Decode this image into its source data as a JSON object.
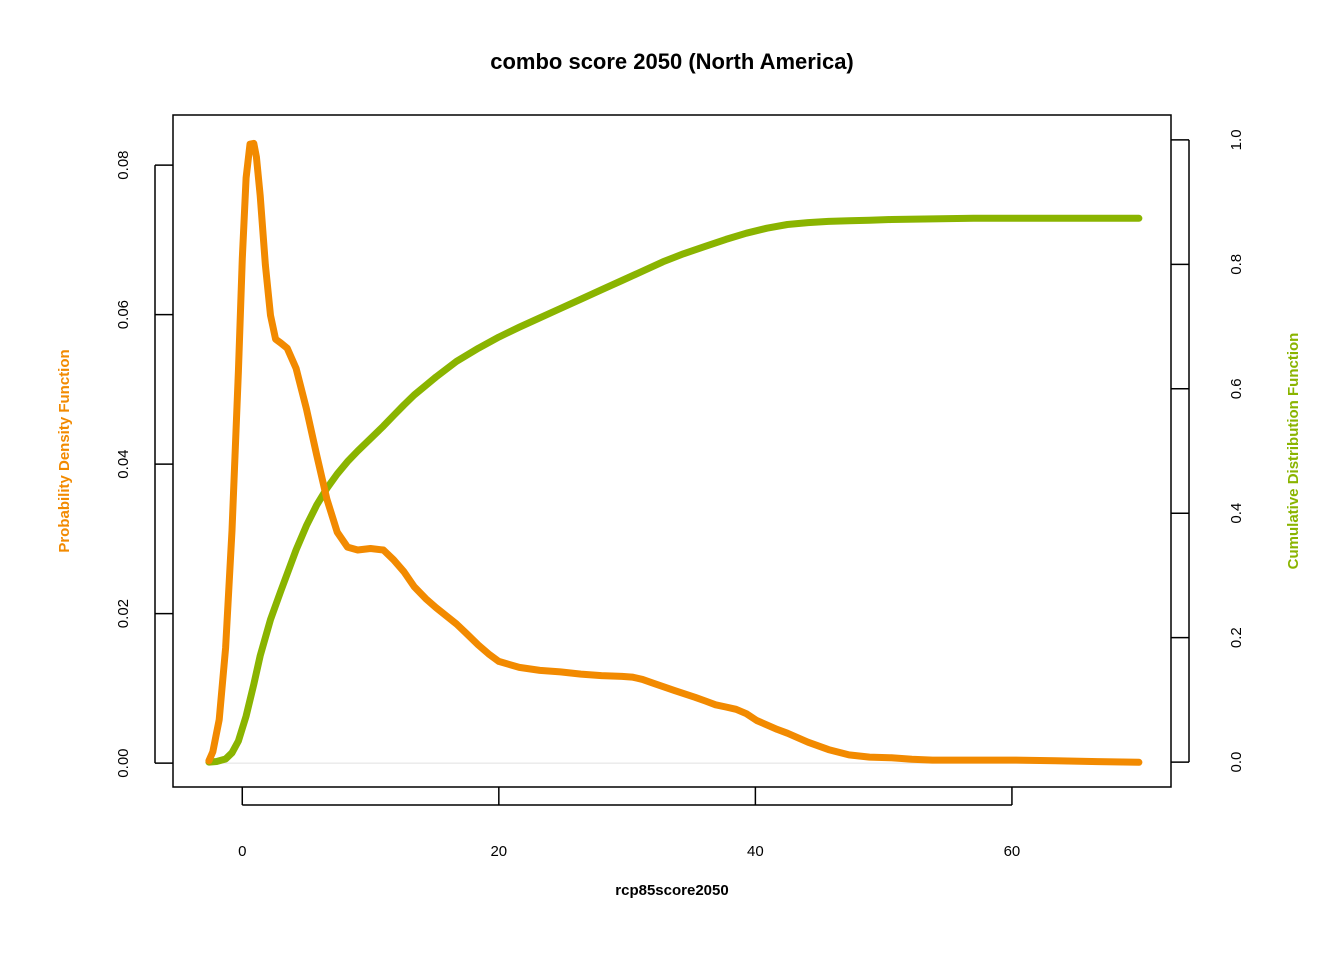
{
  "chart_data": {
    "type": "line",
    "title": "combo score 2050 (North America)",
    "xlabel": "rcp85score2050",
    "ylabel_left": "Probability Density Function",
    "ylabel_right": "Cumulative Distribution Function",
    "xlim": [
      -5.4,
      72.4
    ],
    "ylim_left": [
      -0.0032,
      0.0867
    ],
    "ylim_right": [
      -0.04,
      1.04
    ],
    "x_ticks": [
      0,
      20,
      40,
      60
    ],
    "x_tick_labels": [
      "0",
      "20",
      "40",
      "60"
    ],
    "y_left_ticks": [
      0.0,
      0.02,
      0.04,
      0.06,
      0.08
    ],
    "y_left_tick_labels": [
      "0.00",
      "0.02",
      "0.04",
      "0.06",
      "0.08"
    ],
    "y_right_ticks": [
      0.0,
      0.2,
      0.4,
      0.6,
      0.8,
      1.0
    ],
    "y_right_tick_labels": [
      "0.0",
      "0.2",
      "0.4",
      "0.6",
      "0.8",
      "1.0"
    ],
    "grid": false,
    "colors": {
      "pdf": "#F28A00",
      "cdf": "#8AB400",
      "axis": "#000000",
      "zero_line": "#E0E0E0"
    },
    "series": [
      {
        "name": "Probability Density Function",
        "axis": "left",
        "color": "#F28A00",
        "x": [
          -2.6,
          -2.3,
          -1.8,
          -1.3,
          -0.8,
          -0.3,
          0.0,
          0.3,
          0.6,
          0.9,
          1.1,
          1.4,
          1.8,
          2.2,
          2.6,
          3.0,
          3.5,
          4.2,
          5.0,
          5.8,
          6.6,
          7.4,
          8.2,
          9.0,
          10.0,
          11.0,
          11.8,
          12.6,
          13.4,
          14.3,
          15.1,
          16.7,
          17.5,
          18.4,
          19.2,
          20.0,
          21.6,
          23.2,
          24.8,
          26.4,
          28.0,
          29.6,
          30.4,
          31.2,
          32.0,
          33.7,
          35.3,
          36.1,
          36.9,
          37.7,
          38.5,
          39.3,
          40.1,
          41.7,
          42.5,
          44.1,
          45.7,
          47.3,
          48.9,
          50.6,
          52.2,
          53.8,
          57.0,
          60.2,
          63.4,
          66.7,
          69.9
        ],
        "y": [
          0.0003,
          0.0015,
          0.0058,
          0.0154,
          0.0311,
          0.0524,
          0.0675,
          0.0783,
          0.0828,
          0.0829,
          0.0811,
          0.0759,
          0.0666,
          0.0599,
          0.0567,
          0.0562,
          0.0555,
          0.0528,
          0.0474,
          0.0412,
          0.0353,
          0.0309,
          0.0289,
          0.0285,
          0.0287,
          0.0285,
          0.0272,
          0.0256,
          0.0236,
          0.022,
          0.0208,
          0.0186,
          0.0173,
          0.0158,
          0.0146,
          0.0136,
          0.0128,
          0.0124,
          0.0122,
          0.0119,
          0.0117,
          0.0116,
          0.0115,
          0.0112,
          0.0107,
          0.0097,
          0.0088,
          0.0083,
          0.0078,
          0.0075,
          0.0072,
          0.0066,
          0.0057,
          0.0045,
          0.004,
          0.0028,
          0.0018,
          0.0011,
          0.0008,
          0.0007,
          0.0005,
          0.0004,
          0.0004,
          0.0004,
          0.0003,
          0.0002,
          0.0001
        ]
      },
      {
        "name": "Cumulative Distribution Function",
        "axis": "right",
        "color": "#8AB400",
        "x": [
          -2.6,
          -2.0,
          -1.3,
          -0.8,
          -0.3,
          0.3,
          0.9,
          1.4,
          2.2,
          3.0,
          4.2,
          5.0,
          5.8,
          6.6,
          7.4,
          8.2,
          9.0,
          10.0,
          11.0,
          11.8,
          12.6,
          13.4,
          15.1,
          16.7,
          18.4,
          20.0,
          21.6,
          23.2,
          24.8,
          26.4,
          28.0,
          29.6,
          31.2,
          32.8,
          34.4,
          36.1,
          37.7,
          39.3,
          40.9,
          42.5,
          44.1,
          45.7,
          47.3,
          48.9,
          50.6,
          53.8,
          57.0,
          60.2,
          63.4,
          66.7,
          69.9
        ],
        "y": [
          0.0,
          0.001,
          0.005,
          0.015,
          0.034,
          0.074,
          0.125,
          0.171,
          0.229,
          0.275,
          0.341,
          0.38,
          0.413,
          0.44,
          0.463,
          0.483,
          0.5,
          0.52,
          0.54,
          0.557,
          0.574,
          0.59,
          0.619,
          0.644,
          0.665,
          0.683,
          0.699,
          0.714,
          0.729,
          0.744,
          0.759,
          0.774,
          0.789,
          0.804,
          0.817,
          0.829,
          0.84,
          0.85,
          0.858,
          0.864,
          0.867,
          0.869,
          0.87,
          0.871,
          0.872,
          0.873,
          0.874,
          0.874,
          0.874,
          0.874,
          0.874
        ]
      }
    ]
  }
}
